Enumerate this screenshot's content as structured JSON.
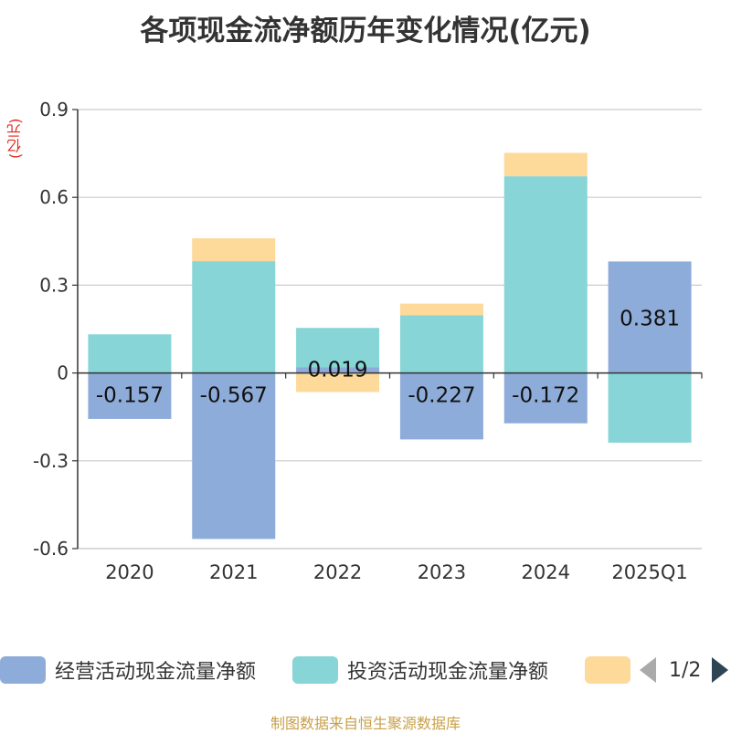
{
  "chart_data": {
    "type": "bar",
    "stacked": true,
    "title": "各项现金流净额历年变化情况(亿元)",
    "ylabel": "(亿元)",
    "xlabel": "",
    "categories": [
      "2020",
      "2021",
      "2022",
      "2023",
      "2024",
      "2025Q1"
    ],
    "ylim": [
      -0.6,
      0.9
    ],
    "yticks": [
      -0.6,
      -0.3,
      0,
      0.3,
      0.6,
      0.9
    ],
    "ytick_labels": [
      "-0.6",
      "-0.3",
      "0",
      "0.3",
      "0.6",
      "0.9"
    ],
    "grid": true,
    "series": [
      {
        "name": "经营活动现金流量净额",
        "color": "#8eacd9",
        "values": [
          -0.157,
          -0.567,
          0.019,
          -0.227,
          -0.172,
          0.381
        ],
        "labels": [
          "-0.157",
          "-0.567",
          "0.019",
          "-0.227",
          "-0.172",
          "0.381"
        ]
      },
      {
        "name": "投资活动现金流量净额",
        "color": "#87d5d7",
        "values": [
          0.132,
          0.382,
          0.135,
          0.197,
          0.672,
          -0.238
        ]
      },
      {
        "name": "",
        "color": "#fdd99a",
        "values": [
          0.0,
          0.078,
          -0.065,
          0.04,
          0.08,
          0.0
        ]
      }
    ],
    "legend_position": "bottom",
    "legend_page": "1/2",
    "source": "制图数据来自恒生聚源数据库"
  }
}
